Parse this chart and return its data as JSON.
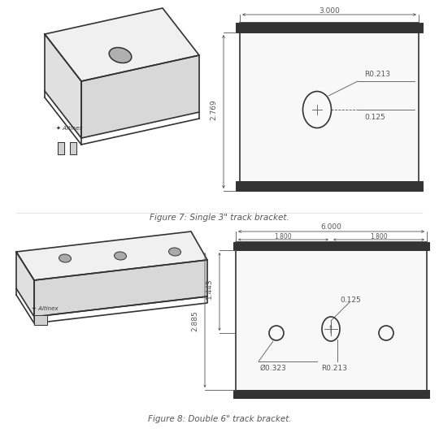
{
  "bg_color": "#ffffff",
  "line_color": "#333333",
  "dim_color": "#555555",
  "fig7_caption": "Figure 7: Single 3\" track bracket.",
  "fig8_caption": "Figure 8: Double 6\" track bracket.",
  "fig7_dim_width": "3.000",
  "fig7_dim_height": "2.769",
  "fig7_hole_r": "R0.213",
  "fig7_hole_offset": "0.125",
  "fig8_dim_width": "6.000",
  "fig8_dim_sub1": "1.800",
  "fig8_dim_sub2": "1.800",
  "fig8_dim_height1": "1.443",
  "fig8_dim_height2": "2.885",
  "fig8_hole_d": "Ø0.323",
  "fig8_hole_r": "R0.213",
  "fig8_hole_offset": "0.125",
  "title_fontsize": 7.5,
  "dim_fontsize": 6.5,
  "label_fontsize": 6.5
}
